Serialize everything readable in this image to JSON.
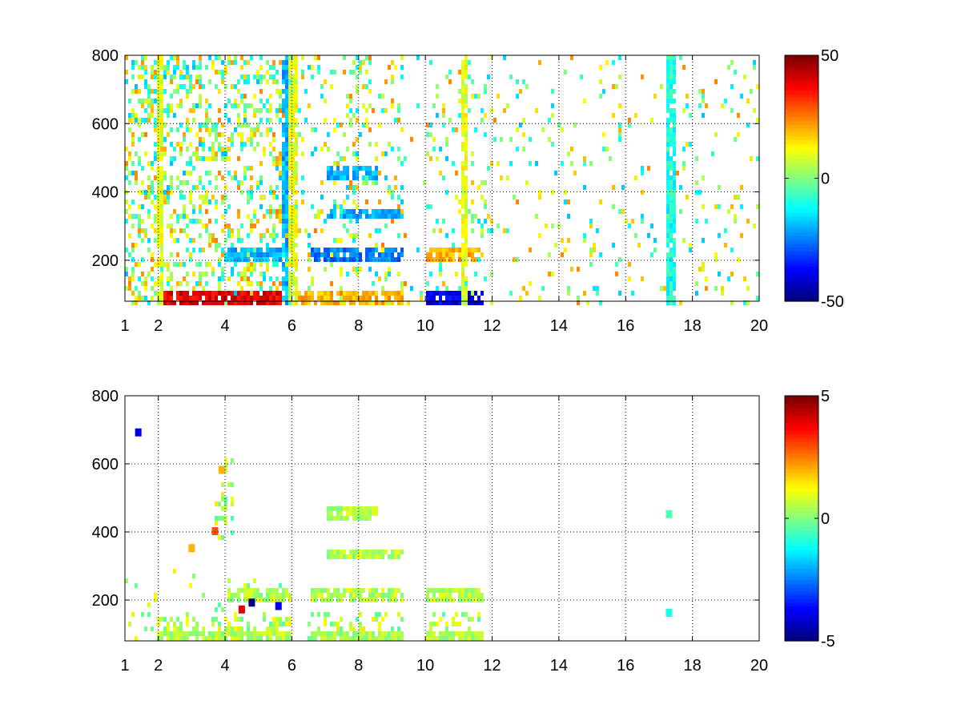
{
  "chart_data": [
    {
      "type": "heatmap",
      "title": "",
      "xlabel": "",
      "ylabel": "",
      "xlim": [
        1,
        20
      ],
      "ylim": [
        80,
        800
      ],
      "xticks": [
        1,
        2,
        4,
        6,
        8,
        10,
        12,
        14,
        16,
        18,
        20
      ],
      "xtick_labels": [
        "1",
        "2",
        "4",
        "6",
        "8",
        "10",
        "12",
        "14",
        "16",
        "18",
        "20"
      ],
      "yticks": [
        200,
        400,
        600,
        800
      ],
      "ytick_labels": [
        "200",
        "400",
        "600",
        "800"
      ],
      "grid": true,
      "colormap": "jet",
      "colorbar": {
        "min": -50,
        "max": 50,
        "ticks": [
          -50,
          0,
          50
        ],
        "tick_labels": [
          "-50",
          "0",
          "50"
        ]
      },
      "features": [
        {
          "kind": "band",
          "y": 100,
          "x": [
            2.0,
            5.9
          ],
          "value": 40
        },
        {
          "kind": "band",
          "y": 100,
          "x": [
            6.0,
            9.3
          ],
          "value": 20
        },
        {
          "kind": "band",
          "y": 100,
          "x": [
            10.0,
            11.7
          ],
          "value": -40
        },
        {
          "kind": "band",
          "y": 220,
          "x": [
            4.0,
            5.9
          ],
          "value": -20
        },
        {
          "kind": "band",
          "y": 220,
          "x": [
            6.5,
            9.3
          ],
          "value": -25
        },
        {
          "kind": "band",
          "y": 220,
          "x": [
            10.0,
            11.7
          ],
          "value": 20
        },
        {
          "kind": "band",
          "y": 340,
          "x": [
            5.5,
            5.9
          ],
          "value": 20
        },
        {
          "kind": "band",
          "y": 340,
          "x": [
            7.0,
            9.3
          ],
          "value": -20
        },
        {
          "kind": "band",
          "y": 460,
          "x": [
            7.0,
            8.5
          ],
          "value": -20
        },
        {
          "kind": "vline",
          "x": 11.1,
          "y": [
            80,
            800
          ],
          "value": 10
        },
        {
          "kind": "vline",
          "x": 17.3,
          "y": [
            80,
            800
          ],
          "value": -10
        },
        {
          "kind": "vline",
          "x": 5.8,
          "y": [
            80,
            800
          ],
          "value": -20
        },
        {
          "kind": "vline",
          "x": 2.0,
          "y": [
            80,
            800
          ],
          "value": 10
        },
        {
          "kind": "vline",
          "x": 6.0,
          "y": [
            80,
            800
          ],
          "value": 10
        }
      ]
    },
    {
      "type": "heatmap",
      "title": "",
      "xlabel": "",
      "ylabel": "",
      "xlim": [
        1,
        20
      ],
      "ylim": [
        80,
        800
      ],
      "xticks": [
        1,
        2,
        4,
        6,
        8,
        10,
        12,
        14,
        16,
        18,
        20
      ],
      "xtick_labels": [
        "1",
        "2",
        "4",
        "6",
        "8",
        "10",
        "12",
        "14",
        "16",
        "18",
        "20"
      ],
      "yticks": [
        200,
        400,
        600,
        800
      ],
      "ytick_labels": [
        "200",
        "400",
        "600",
        "800"
      ],
      "grid": true,
      "colormap": "jet",
      "colorbar": {
        "min": -5,
        "max": 5,
        "ticks": [
          -5,
          0,
          5
        ],
        "tick_labels": [
          "-5",
          "0",
          "5"
        ]
      },
      "features": [
        {
          "kind": "band",
          "y": 100,
          "x": [
            2.0,
            5.9
          ],
          "value": 0.5
        },
        {
          "kind": "band",
          "y": 100,
          "x": [
            6.5,
            9.3
          ],
          "value": 0.5
        },
        {
          "kind": "band",
          "y": 100,
          "x": [
            10.0,
            11.7
          ],
          "value": 0.5
        },
        {
          "kind": "band",
          "y": 220,
          "x": [
            4.0,
            5.9
          ],
          "value": 0.5
        },
        {
          "kind": "band",
          "y": 220,
          "x": [
            6.5,
            9.3
          ],
          "value": 0.5
        },
        {
          "kind": "band",
          "y": 220,
          "x": [
            10.0,
            11.7
          ],
          "value": 0.5
        },
        {
          "kind": "band",
          "y": 340,
          "x": [
            7.0,
            9.3
          ],
          "value": 0.5
        },
        {
          "kind": "band",
          "y": 460,
          "x": [
            7.0,
            8.5
          ],
          "value": 0.5
        },
        {
          "kind": "spot",
          "x": 4.8,
          "y": 190,
          "value": -5
        },
        {
          "kind": "spot",
          "x": 5.6,
          "y": 180,
          "value": -4
        },
        {
          "kind": "spot",
          "x": 4.5,
          "y": 170,
          "value": 4
        },
        {
          "kind": "spot",
          "x": 3.9,
          "y": 580,
          "value": 2
        },
        {
          "kind": "spot",
          "x": 3.7,
          "y": 400,
          "value": 3
        },
        {
          "kind": "spot",
          "x": 3.0,
          "y": 350,
          "value": 2
        },
        {
          "kind": "spot",
          "x": 1.4,
          "y": 690,
          "value": -4
        },
        {
          "kind": "spot",
          "x": 17.3,
          "y": 160,
          "value": -1
        },
        {
          "kind": "spot",
          "x": 17.3,
          "y": 450,
          "value": -0.5
        }
      ]
    }
  ]
}
